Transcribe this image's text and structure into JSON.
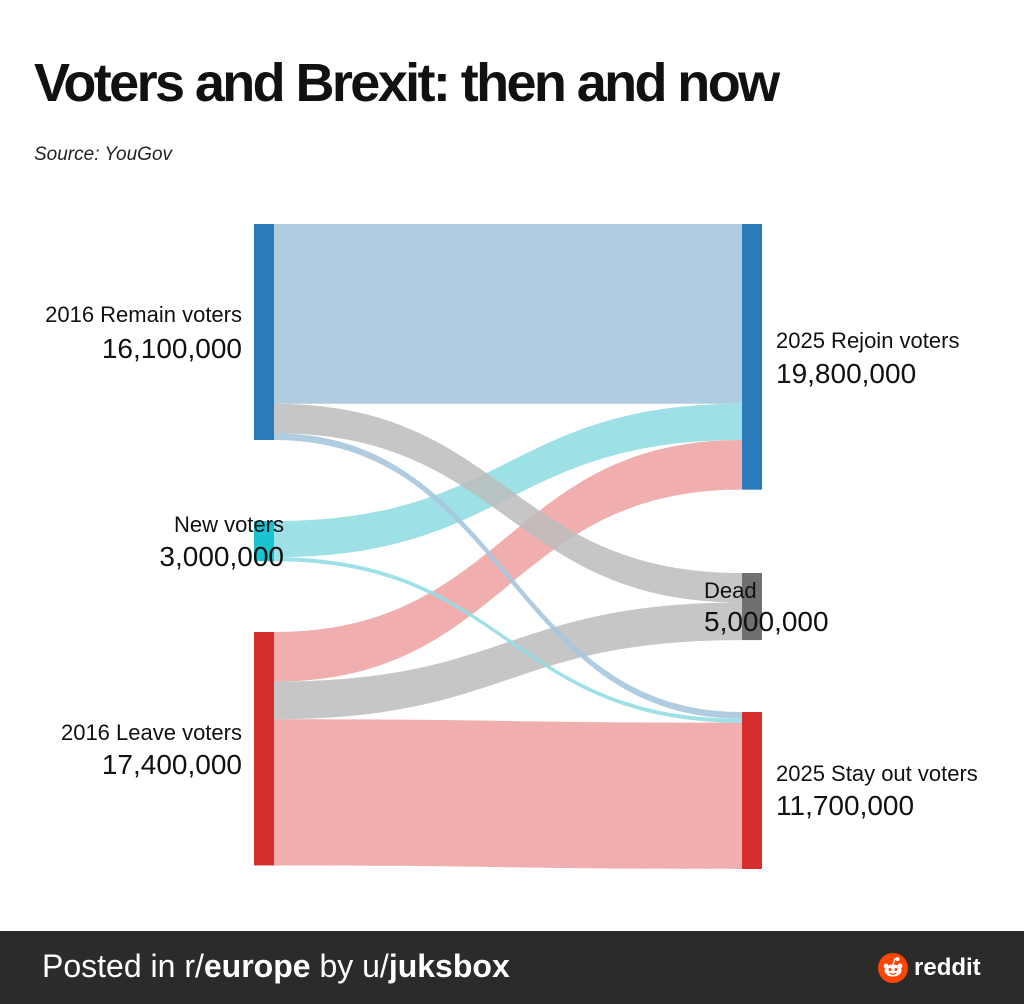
{
  "title": "Voters and Brexit: then and now",
  "subtitle": "Source: YouGov",
  "colors": {
    "remain": "#2b7bba",
    "new": "#19c3cf",
    "leave": "#d62d2d",
    "dead": "#707070",
    "link_remain": "#a6c6de",
    "link_new": "#92dde3",
    "link_leave": "#eea5a5",
    "link_dead": "#bcbcbc",
    "footer_bg": "#2b2b2b",
    "reddit_orange": "#ff4500"
  },
  "chart_data": {
    "type": "sankey",
    "title": "Voters and Brexit: then and now",
    "subtitle": "Source: YouGov",
    "nodes": [
      {
        "id": "remain",
        "name": "2016 Remain voters",
        "value_label": "16,100,000",
        "value": 16100000,
        "column": "left"
      },
      {
        "id": "new",
        "name": "New voters",
        "value_label": "3,000,000",
        "value": 3000000,
        "column": "left"
      },
      {
        "id": "leave",
        "name": "2016 Leave voters",
        "value_label": "17,400,000",
        "value": 17400000,
        "column": "left"
      },
      {
        "id": "rejoin",
        "name": "2025 Rejoin voters",
        "value_label": "19,800,000",
        "value": 19800000,
        "column": "right"
      },
      {
        "id": "dead",
        "name": "Dead",
        "value_label": "5,000,000",
        "value": 5000000,
        "column": "right"
      },
      {
        "id": "stayout",
        "name": "2025 Stay out voters",
        "value_label": "11,700,000",
        "value": 11700000,
        "column": "right"
      }
    ],
    "links": [
      {
        "source": "remain",
        "target": "rejoin",
        "value": 13400000
      },
      {
        "source": "remain",
        "target": "dead",
        "value": 2200000
      },
      {
        "source": "remain",
        "target": "stayout",
        "value": 500000
      },
      {
        "source": "new",
        "target": "rejoin",
        "value": 2700000
      },
      {
        "source": "new",
        "target": "stayout",
        "value": 300000
      },
      {
        "source": "leave",
        "target": "rejoin",
        "value": 3700000
      },
      {
        "source": "leave",
        "target": "dead",
        "value": 2800000
      },
      {
        "source": "leave",
        "target": "stayout",
        "value": 10900000
      }
    ]
  },
  "footer": {
    "prefix": "Posted in r/",
    "subreddit": "europe",
    "middle": " by u/",
    "username": "juksbox",
    "brand": "reddit"
  }
}
